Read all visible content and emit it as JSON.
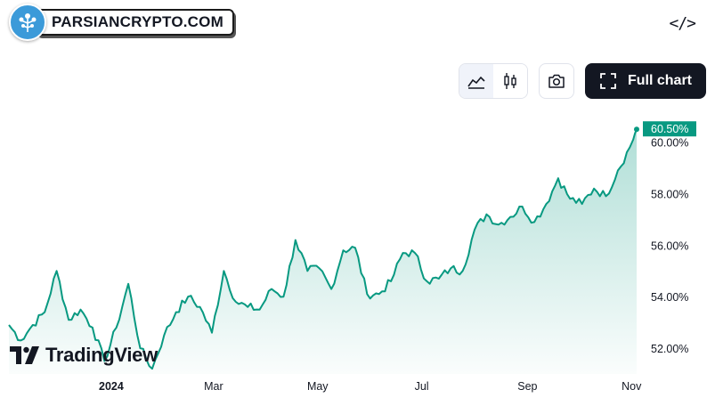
{
  "watermark": {
    "text": "PARSIANCRYPTO.COM"
  },
  "toolbar": {
    "full_chart_label": "Full chart"
  },
  "icons": {
    "embed": "code-embed-icon",
    "area_chart": "area-chart-icon",
    "candles": "candlestick-icon",
    "camera": "camera-icon",
    "fullscreen": "fullscreen-icon"
  },
  "branding": {
    "logo_text": "TradingView"
  },
  "colors": {
    "line": "#089981",
    "label_bg": "#089981",
    "text": "#131722"
  },
  "chart_data": {
    "type": "area",
    "title": "",
    "xlabel": "",
    "ylabel": "",
    "x_ticks": [
      "2024",
      "Mar",
      "May",
      "Jul",
      "Sep",
      "Nov"
    ],
    "y_ticks": [
      "52.00%",
      "54.00%",
      "56.00%",
      "58.00%",
      "60.00%"
    ],
    "last_value_label": "60.50%",
    "ylim": [
      51,
      61.2
    ],
    "x": [
      "2023-11-02",
      "2023-11-09",
      "2023-11-16",
      "2023-11-23",
      "2023-11-30",
      "2023-12-07",
      "2023-12-14",
      "2023-12-21",
      "2023-12-28",
      "2024-01-04",
      "2024-01-11",
      "2024-01-18",
      "2024-01-25",
      "2024-02-01",
      "2024-02-08",
      "2024-02-15",
      "2024-02-22",
      "2024-02-29",
      "2024-03-07",
      "2024-03-14",
      "2024-03-21",
      "2024-03-28",
      "2024-04-04",
      "2024-04-11",
      "2024-04-18",
      "2024-04-25",
      "2024-05-02",
      "2024-05-09",
      "2024-05-16",
      "2024-05-23",
      "2024-05-30",
      "2024-06-06",
      "2024-06-13",
      "2024-06-20",
      "2024-06-27",
      "2024-07-04",
      "2024-07-11",
      "2024-07-18",
      "2024-07-25",
      "2024-08-01",
      "2024-08-08",
      "2024-08-15",
      "2024-08-22",
      "2024-08-29",
      "2024-09-05",
      "2024-09-12",
      "2024-09-19",
      "2024-09-26",
      "2024-10-03",
      "2024-10-10",
      "2024-10-17",
      "2024-10-24",
      "2024-10-31",
      "2024-11-04"
    ],
    "values": [
      52.9,
      52.3,
      52.9,
      53.4,
      55.0,
      53.1,
      53.5,
      52.8,
      51.5,
      52.8,
      54.5,
      52.0,
      51.2,
      52.5,
      53.4,
      54.0,
      53.6,
      52.6,
      55.0,
      53.8,
      53.6,
      53.5,
      54.3,
      54.0,
      56.2,
      55.0,
      55.1,
      54.3,
      55.8,
      55.9,
      54.1,
      54.1,
      54.6,
      55.7,
      55.7,
      54.6,
      54.7,
      55.1,
      55.0,
      56.6,
      57.2,
      56.8,
      57.1,
      57.5,
      56.9,
      57.6,
      58.6,
      57.8,
      57.6,
      58.2,
      57.9,
      58.9,
      59.8,
      60.5
    ]
  }
}
